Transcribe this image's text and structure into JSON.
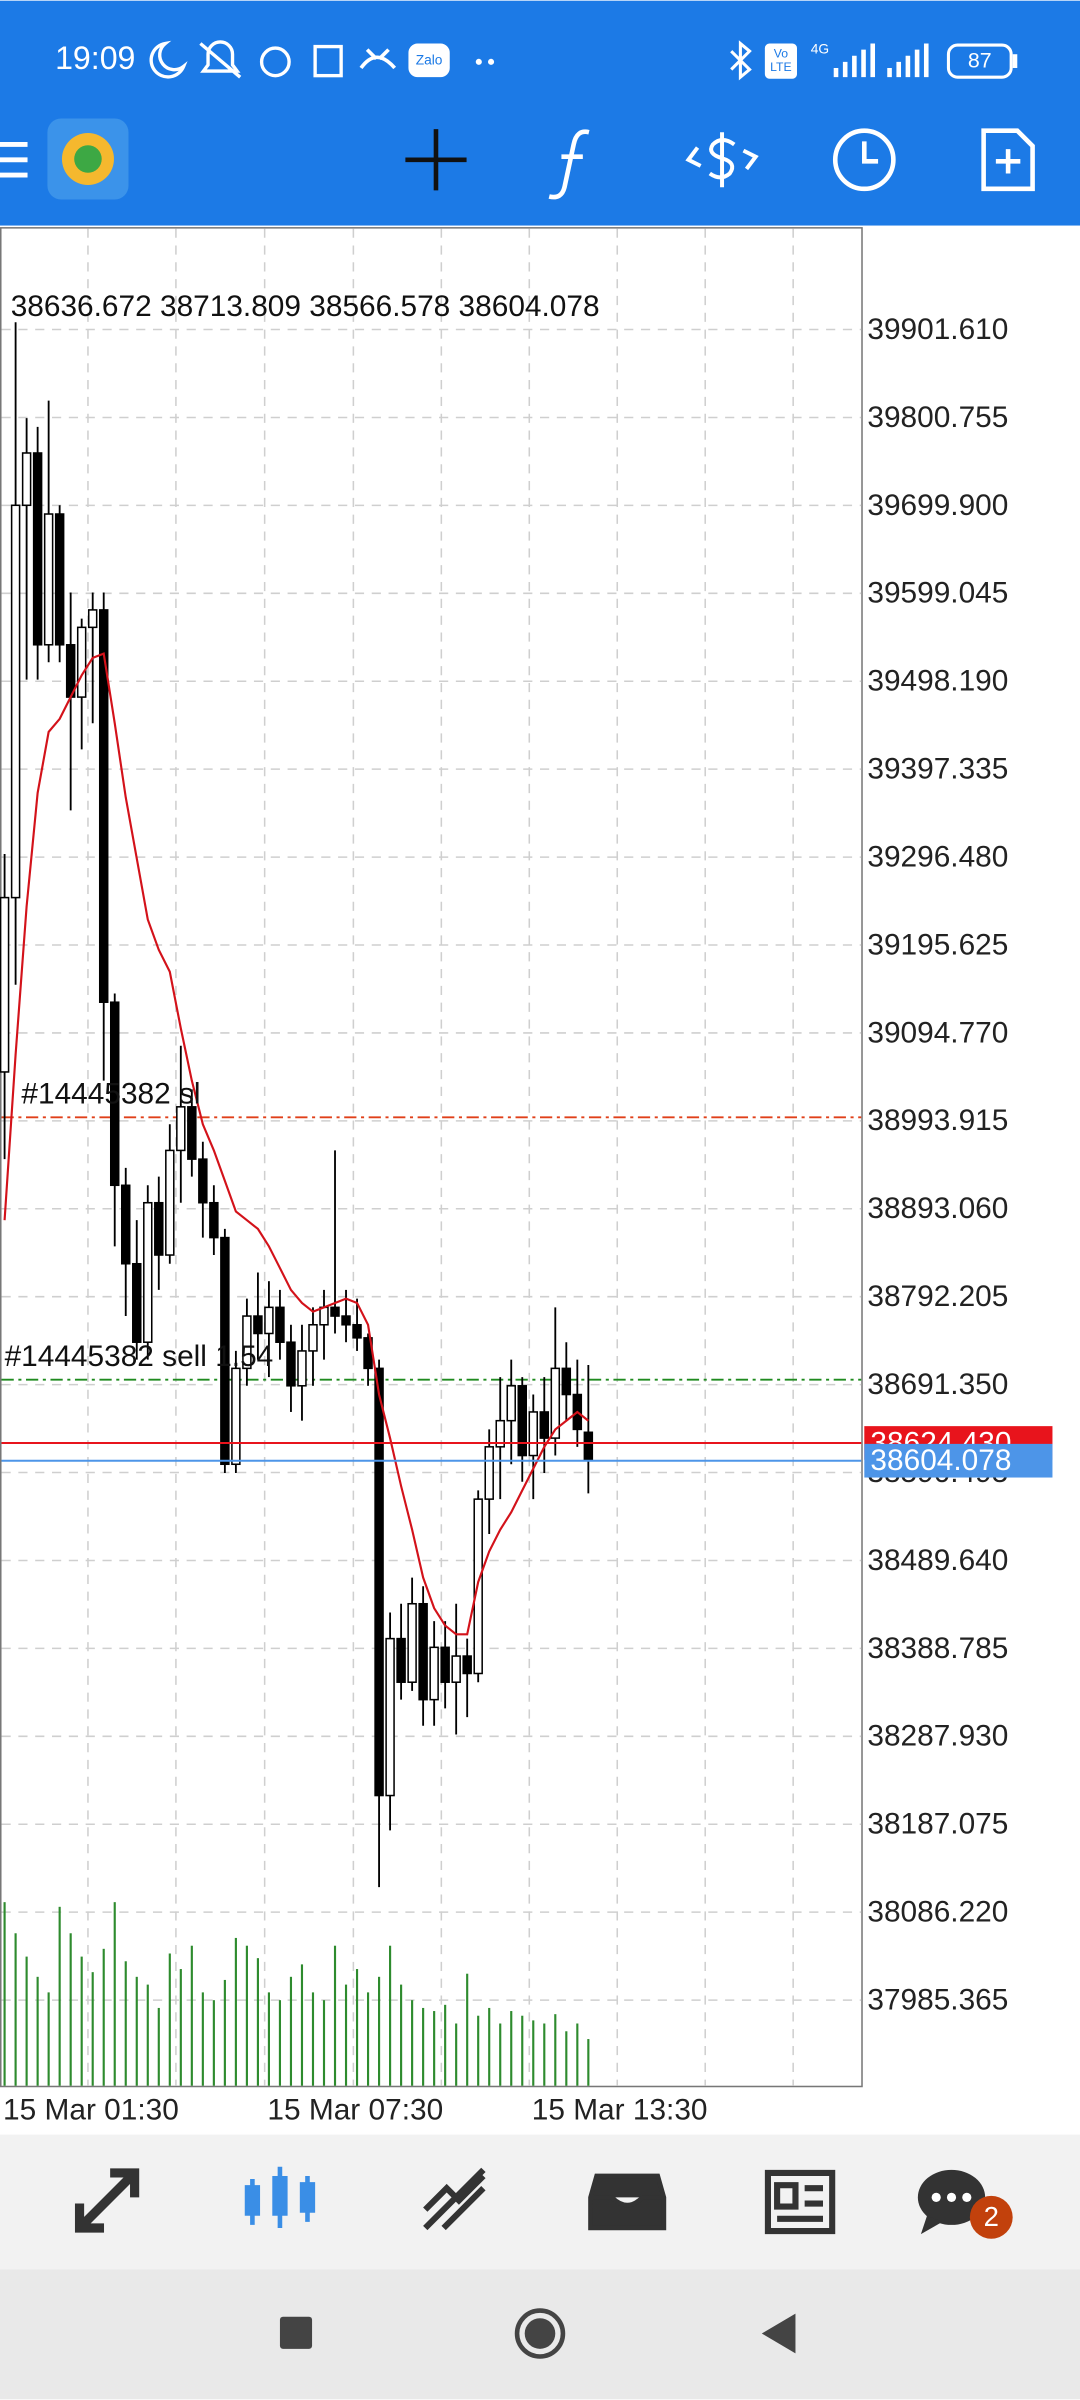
{
  "status_bar": {
    "time": "19:09",
    "zalo": "Zalo",
    "volte_top": "Vo",
    "volte_bottom": "LTE",
    "network": "4G",
    "battery": "87"
  },
  "bottom_nav": {
    "chat_badge": "2"
  },
  "chart_data": {
    "type": "candlestick",
    "ohlc_label": "38636.672 38713.809 38566.578 38604.078",
    "categories": [
      "15 Mar 01:30",
      null,
      null,
      null,
      null,
      null,
      null,
      null,
      null,
      null,
      null,
      null,
      null,
      null,
      null,
      null,
      null,
      null,
      null,
      null,
      null,
      null,
      null,
      null,
      "15 Mar 07:30",
      null,
      null,
      null,
      null,
      null,
      null,
      null,
      null,
      null,
      null,
      null,
      null,
      null,
      null,
      null,
      null,
      null,
      null,
      null,
      null,
      null,
      null,
      null,
      "15 Mar 13:30",
      null,
      null,
      null,
      null,
      null
    ],
    "open": [
      39050,
      39250,
      39700,
      39760,
      39540,
      39690,
      39540,
      39480,
      39560,
      39580,
      39130,
      38920,
      38830,
      38740,
      38900,
      38840,
      38960,
      39010,
      38950,
      38900,
      38860,
      38600,
      38710,
      38770,
      38750,
      38780,
      38740,
      38690,
      38730,
      38760,
      38780,
      38770,
      38760,
      38745,
      38710,
      38220,
      38400,
      38350,
      38440,
      38330,
      38390,
      38350,
      38380,
      38360,
      38560,
      38620,
      38650,
      38690,
      38610,
      38660,
      38630,
      38710,
      38680,
      38636.672
    ],
    "high": [
      39300,
      39910,
      39800,
      39790,
      39820,
      39700,
      39600,
      39570,
      39600,
      39600,
      39140,
      38940,
      38880,
      38920,
      38930,
      38990,
      39080,
      39030,
      38970,
      38920,
      38870,
      38730,
      38790,
      38820,
      38810,
      38800,
      38760,
      38760,
      38780,
      38800,
      38960,
      38800,
      38790,
      38750,
      38720,
      38430,
      38440,
      38470,
      38460,
      38420,
      38420,
      38440,
      38400,
      38570,
      38640,
      38700,
      38720,
      38700,
      38680,
      38700,
      38780,
      38740,
      38720,
      38713.809
    ],
    "low": [
      38950,
      39150,
      39500,
      39500,
      39520,
      39520,
      39350,
      39420,
      39450,
      39040,
      38850,
      38770,
      38720,
      38720,
      38800,
      38830,
      38900,
      38930,
      38860,
      38840,
      38590,
      38590,
      38690,
      38720,
      38700,
      38720,
      38660,
      38650,
      38690,
      38720,
      38750,
      38740,
      38730,
      38690,
      38115,
      38180,
      38330,
      38340,
      38300,
      38300,
      38320,
      38290,
      38310,
      38350,
      38520,
      38560,
      38600,
      38580,
      38560,
      38590,
      38610,
      38650,
      38620,
      38566.578
    ],
    "close": [
      39250,
      39700,
      39760,
      39540,
      39690,
      39540,
      39480,
      39560,
      39580,
      39130,
      38920,
      38830,
      38740,
      38900,
      38840,
      38960,
      39010,
      38950,
      38900,
      38860,
      38600,
      38710,
      38770,
      38750,
      38780,
      38740,
      38690,
      38730,
      38760,
      38780,
      38770,
      38760,
      38745,
      38710,
      38220,
      38400,
      38350,
      38440,
      38330,
      38390,
      38350,
      38380,
      38360,
      38560,
      38620,
      38650,
      38690,
      38610,
      38660,
      38630,
      38710,
      38680,
      38640,
      38604.078
    ],
    "ma": {
      "color": "#d3121a",
      "values": [
        38880,
        39070,
        39240,
        39370,
        39440,
        39455,
        39480,
        39505,
        39525,
        39530,
        39450,
        39365,
        39295,
        39225,
        39190,
        39165,
        39100,
        39040,
        38990,
        38960,
        38925,
        38890,
        38880,
        38870,
        38850,
        38825,
        38800,
        38785,
        38775,
        38780,
        38785,
        38790,
        38785,
        38760,
        38680,
        38630,
        38575,
        38525,
        38470,
        38435,
        38415,
        38405,
        38405,
        38465,
        38500,
        38525,
        38545,
        38570,
        38595,
        38620,
        38640,
        38650,
        38660,
        38650
      ]
    },
    "volume": {
      "color": "#2e8b2e",
      "values": [
        118,
        98,
        83,
        70,
        60,
        115,
        98,
        83,
        73,
        88,
        118,
        80,
        70,
        65,
        50,
        85,
        75,
        90,
        60,
        55,
        68,
        95,
        90,
        82,
        60,
        55,
        70,
        78,
        60,
        55,
        90,
        65,
        75,
        60,
        70,
        90,
        65,
        55,
        50,
        48,
        52,
        40,
        72,
        45,
        50,
        40,
        48,
        45,
        42,
        40,
        46,
        35,
        40,
        30
      ]
    },
    "ylim": [
      37887.14,
      40019.13
    ],
    "yticks": [
      {
        "value": 39901.61,
        "label": "39901.610"
      },
      {
        "value": 39800.755,
        "label": "39800.755"
      },
      {
        "value": 39699.9,
        "label": "39699.900"
      },
      {
        "value": 39599.045,
        "label": "39599.045"
      },
      {
        "value": 39498.19,
        "label": "39498.190"
      },
      {
        "value": 39397.335,
        "label": "39397.335"
      },
      {
        "value": 39296.48,
        "label": "39296.480"
      },
      {
        "value": 39195.625,
        "label": "39195.625"
      },
      {
        "value": 39094.77,
        "label": "39094.770"
      },
      {
        "value": 38993.915,
        "label": "38993.915"
      },
      {
        "value": 38893.06,
        "label": "38893.060"
      },
      {
        "value": 38792.205,
        "label": "38792.205"
      },
      {
        "value": 38691.35,
        "label": "38691.350"
      },
      {
        "value": 38590.495,
        "label": "38590.495"
      },
      {
        "value": 38489.64,
        "label": "38489.640"
      },
      {
        "value": 38388.785,
        "label": "38388.785"
      },
      {
        "value": 38287.93,
        "label": "38287.930"
      },
      {
        "value": 38187.075,
        "label": "38187.075"
      },
      {
        "value": 38086.22,
        "label": "38086.220"
      },
      {
        "value": 37985.365,
        "label": "37985.365"
      }
    ],
    "grid": true,
    "orders": [
      {
        "label": "#14445382 sl",
        "value": 38998,
        "color": "#e0401a"
      },
      {
        "label": "#14445382 sell 1.54",
        "value": 38697,
        "color": "#1f8a1f"
      }
    ],
    "price_lines": [
      {
        "value": 38624.43,
        "label": "38624.430",
        "color": "#e8141c"
      },
      {
        "value": 38604.078,
        "label": "38604.078",
        "color": "#4d95e8"
      }
    ]
  }
}
